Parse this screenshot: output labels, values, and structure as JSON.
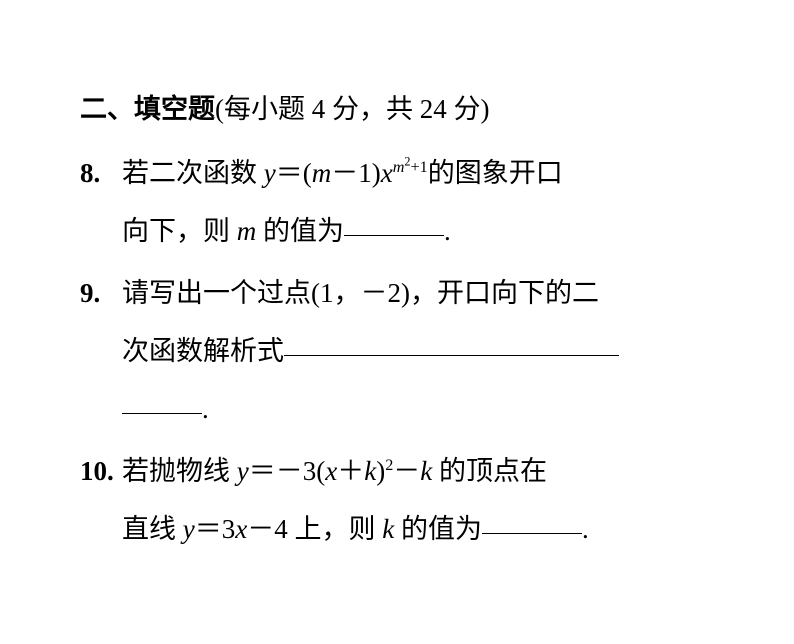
{
  "page": {
    "background_color": "#ffffff",
    "text_color": "#000000",
    "base_fontsize": 27,
    "line_height": 2.15,
    "body_font": "SimSun",
    "math_font": "Times New Roman"
  },
  "section": {
    "label": "二、填空题",
    "paren_open": "(",
    "paren_close": ")",
    "scoring_prefix": "每小题 ",
    "per_points": "4",
    "scoring_mid": " 分，共 ",
    "total_points": "24",
    "scoring_suffix": " 分"
  },
  "questions": [
    {
      "number": "8.",
      "line1_a": "若二次函数 ",
      "eq1_lhs": "y",
      "eq1_eq": "＝",
      "eq1_open": "(",
      "eq1_m": "m",
      "eq1_minus": "－",
      "eq1_one": "1",
      "eq1_close": ")",
      "eq1_x": "x",
      "eq1_exp_m": "m",
      "eq1_exp_sq": "2",
      "eq1_exp_plus": "+",
      "eq1_exp_one": "1",
      "line1_b": "的图象开口",
      "line2_a": "向下，则 ",
      "line2_m": "m",
      "line2_b": " 的值为",
      "line2_c": "."
    },
    {
      "number": "9.",
      "line1_a": "请写出一个过点",
      "pt_open": "(",
      "pt_x": "1",
      "pt_comma": "，",
      "pt_neg": "－",
      "pt_y": "2",
      "pt_close": ")",
      "line1_b": "，开口向下的二",
      "line2_a": "次函数解析式",
      "line3_a": "."
    },
    {
      "number": "10.",
      "line1_a": "若抛物线 ",
      "eq_y": "y",
      "eq_eq": "＝",
      "eq_neg": "－",
      "eq_3": "3",
      "eq_open": "(",
      "eq_x": "x",
      "eq_plus": "＋",
      "eq_k": "k",
      "eq_close": ")",
      "eq_sq": "2",
      "eq_minus": "－",
      "eq_k2": "k",
      "line1_b": " 的顶点在",
      "line2_a": "直线 ",
      "l_y": "y",
      "l_eq": "＝",
      "l_3": "3",
      "l_x": "x",
      "l_minus": "－",
      "l_4": "4",
      "line2_b": " 上，则 ",
      "l_k": "k",
      "line2_c": " 的值为",
      "line2_d": "."
    }
  ]
}
